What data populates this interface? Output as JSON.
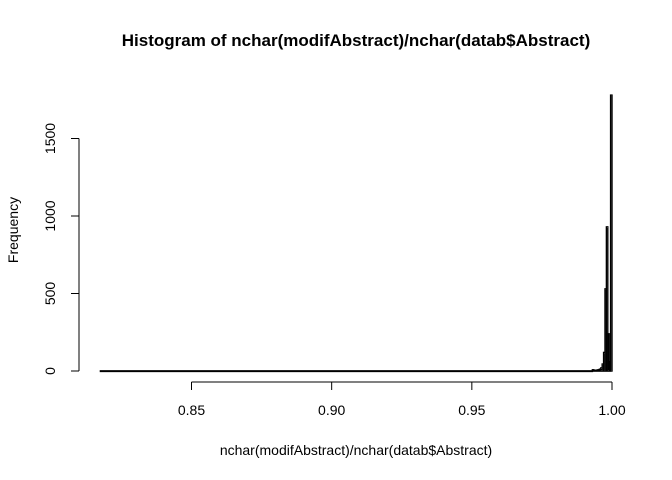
{
  "chart_data": {
    "type": "bar",
    "title": "Histogram of nchar(modifAbstract)/nchar(datab$Abstract)",
    "xlabel": "nchar(modifAbstract)/nchar(datab$Abstract)",
    "ylabel": "Frequency",
    "xlim": [
      0.817,
      1.0
    ],
    "ylim": [
      0,
      1800
    ],
    "x_ticks": [
      0.85,
      0.9,
      0.95,
      1.0
    ],
    "x_tick_labels": [
      "0.85",
      "0.90",
      "0.95",
      "1.00"
    ],
    "y_ticks": [
      0,
      500,
      1000,
      1500
    ],
    "y_tick_labels": [
      "0",
      "500",
      "1000",
      "1500"
    ],
    "grid": false,
    "bin_width": 0.0005,
    "bins": [
      {
        "x0": 0.8175,
        "x1": 0.993,
        "count": 1
      },
      {
        "x0": 0.993,
        "x1": 0.9935,
        "count": 8
      },
      {
        "x0": 0.9935,
        "x1": 0.994,
        "count": 5
      },
      {
        "x0": 0.994,
        "x1": 0.9945,
        "count": 4
      },
      {
        "x0": 0.9945,
        "x1": 0.995,
        "count": 6
      },
      {
        "x0": 0.995,
        "x1": 0.9955,
        "count": 8
      },
      {
        "x0": 0.9955,
        "x1": 0.996,
        "count": 12
      },
      {
        "x0": 0.996,
        "x1": 0.9965,
        "count": 20
      },
      {
        "x0": 0.9965,
        "x1": 0.997,
        "count": 45
      },
      {
        "x0": 0.997,
        "x1": 0.9975,
        "count": 120
      },
      {
        "x0": 0.9975,
        "x1": 0.998,
        "count": 530
      },
      {
        "x0": 0.998,
        "x1": 0.9985,
        "count": 930
      },
      {
        "x0": 0.9985,
        "x1": 0.999,
        "count": 240
      },
      {
        "x0": 0.999,
        "x1": 0.9995,
        "count": 60
      },
      {
        "x0": 0.9995,
        "x1": 1.0,
        "count": 1780
      }
    ]
  }
}
